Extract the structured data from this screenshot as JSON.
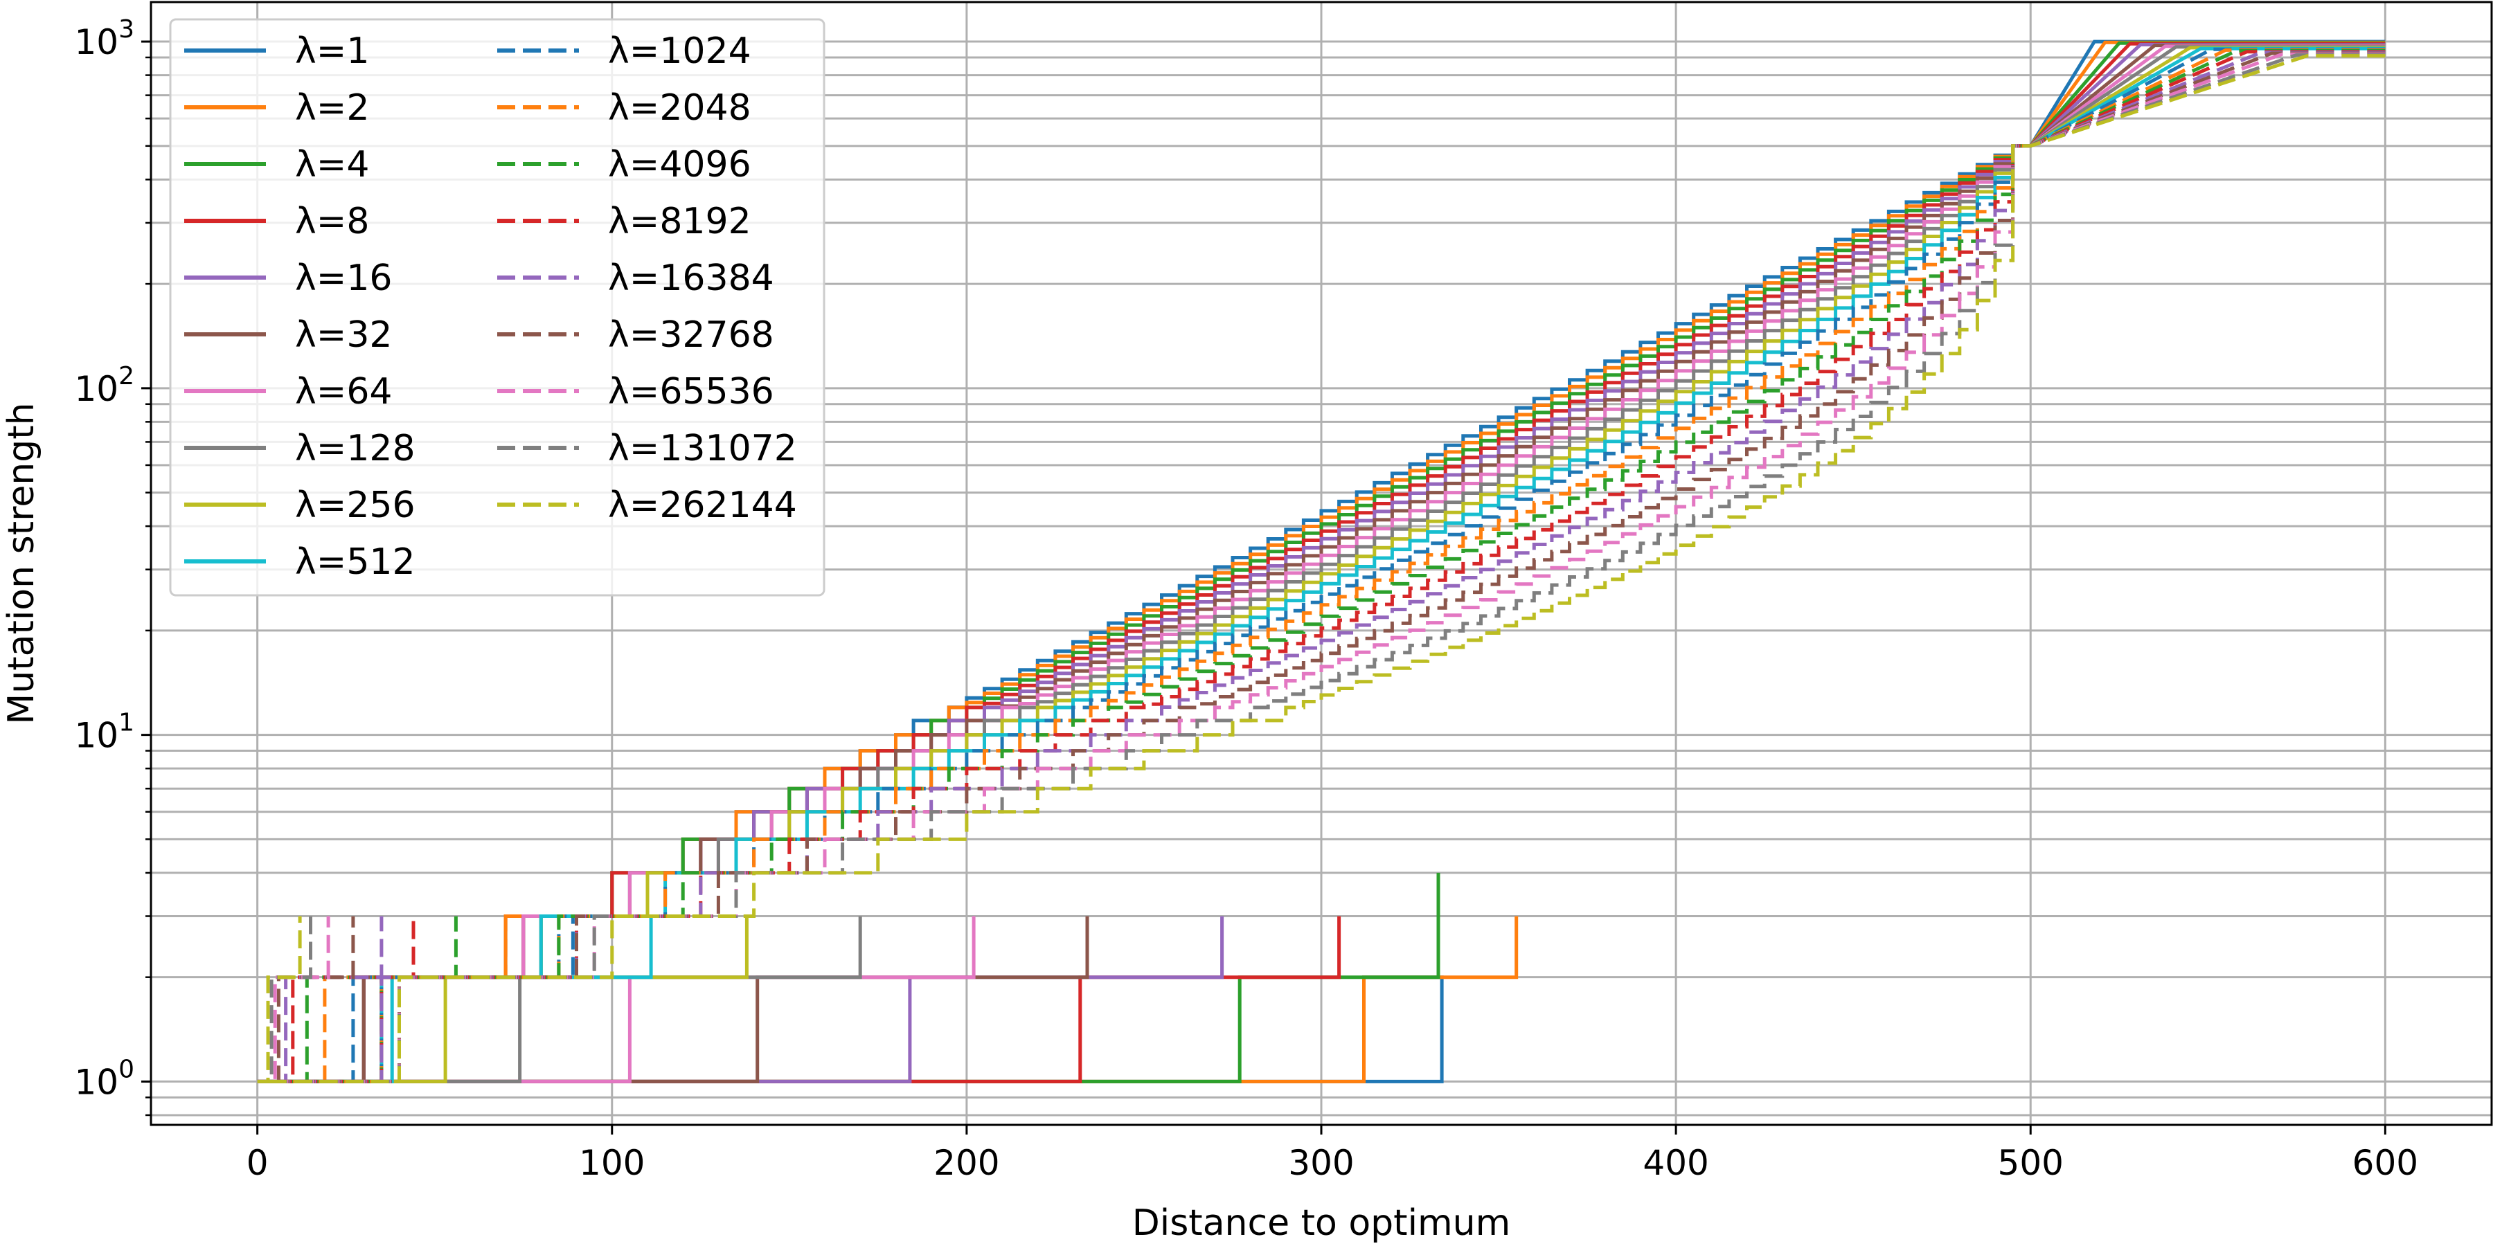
{
  "chart_data": {
    "type": "line",
    "title": "",
    "xlabel": "Distance to optimum",
    "ylabel": "Mutation strength",
    "xlim": [
      -30,
      630
    ],
    "ylim": [
      0.75,
      1300
    ],
    "yscale": "log",
    "grid": true,
    "legend_position": "top-left",
    "legend_columns": 2,
    "xticks": [
      0,
      100,
      200,
      300,
      400,
      500,
      600
    ],
    "xtick_labels": [
      "0",
      "100",
      "200",
      "300",
      "400",
      "500",
      "600"
    ],
    "yticks_major": [
      1,
      10,
      100,
      1000
    ],
    "ytick_labels": [
      {
        "base": "10",
        "exp": "0"
      },
      {
        "base": "10",
        "exp": "1"
      },
      {
        "base": "10",
        "exp": "2"
      },
      {
        "base": "10",
        "exp": "3"
      }
    ],
    "palette": [
      "#1f77b4",
      "#ff7f0e",
      "#2ca02c",
      "#d62728",
      "#9467bd",
      "#8c564b",
      "#e377c2",
      "#7f7f7f",
      "#bcbd22",
      "#17becf"
    ],
    "series": [
      {
        "name": "λ=1",
        "color": "#1f77b4",
        "dash": "solid",
        "k": 0,
        "points": [
          [
            0,
            1
          ],
          [
            334,
            1
          ],
          [
            334,
            2
          ],
          [
            312,
            2
          ],
          [
            312,
            1
          ]
        ]
      },
      {
        "name": "λ=2",
        "color": "#ff7f0e",
        "dash": "solid",
        "k": 1,
        "points": [
          [
            0,
            1
          ],
          [
            312,
            1
          ],
          [
            312,
            2
          ],
          [
            355,
            2
          ],
          [
            355,
            3
          ]
        ]
      },
      {
        "name": "λ=4",
        "color": "#2ca02c",
        "dash": "solid",
        "k": 2,
        "points": [
          [
            0,
            1
          ],
          [
            277,
            1
          ],
          [
            277,
            2
          ],
          [
            333,
            2
          ],
          [
            333,
            4
          ]
        ]
      },
      {
        "name": "λ=8",
        "color": "#d62728",
        "dash": "solid",
        "k": 3,
        "points": [
          [
            0,
            1
          ],
          [
            232,
            1
          ],
          [
            232,
            2
          ],
          [
            305,
            2
          ],
          [
            305,
            3
          ]
        ]
      },
      {
        "name": "λ=16",
        "color": "#9467bd",
        "dash": "solid",
        "k": 4,
        "points": [
          [
            0,
            1
          ],
          [
            184,
            1
          ],
          [
            184,
            2
          ],
          [
            272,
            2
          ],
          [
            272,
            3
          ]
        ]
      },
      {
        "name": "λ=32",
        "color": "#8c564b",
        "dash": "solid",
        "k": 5,
        "points": [
          [
            0,
            1
          ],
          [
            141,
            1
          ],
          [
            141,
            2
          ],
          [
            234,
            2
          ],
          [
            234,
            3
          ]
        ]
      },
      {
        "name": "λ=64",
        "color": "#e377c2",
        "dash": "solid",
        "k": 6,
        "points": [
          [
            0,
            1
          ],
          [
            105,
            1
          ],
          [
            105,
            2
          ],
          [
            202,
            2
          ],
          [
            202,
            3
          ]
        ]
      },
      {
        "name": "λ=128",
        "color": "#7f7f7f",
        "dash": "solid",
        "k": 7,
        "points": [
          [
            0,
            1
          ],
          [
            74,
            1
          ],
          [
            74,
            2
          ],
          [
            170,
            2
          ],
          [
            170,
            3
          ]
        ]
      },
      {
        "name": "λ=256",
        "color": "#bcbd22",
        "dash": "solid",
        "k": 8,
        "points": [
          [
            0,
            1
          ],
          [
            53,
            1
          ],
          [
            53,
            2
          ],
          [
            138,
            2
          ],
          [
            138,
            3
          ]
        ]
      },
      {
        "name": "λ=512",
        "color": "#17becf",
        "dash": "solid",
        "k": 9,
        "points": [
          [
            0,
            1
          ],
          [
            38,
            1
          ],
          [
            38,
            2
          ],
          [
            111,
            2
          ],
          [
            111,
            3
          ]
        ]
      },
      {
        "name": "λ=1024",
        "color": "#1f77b4",
        "dash": "dashed",
        "k": 10,
        "points": [
          [
            0,
            1
          ],
          [
            27,
            1
          ],
          [
            27,
            2
          ],
          [
            89,
            2
          ],
          [
            89,
            3
          ]
        ]
      },
      {
        "name": "λ=2048",
        "color": "#ff7f0e",
        "dash": "dashed",
        "k": 11,
        "points": [
          [
            0,
            1
          ],
          [
            19,
            1
          ],
          [
            19,
            2
          ],
          [
            70,
            2
          ],
          [
            70,
            3
          ]
        ]
      },
      {
        "name": "λ=4096",
        "color": "#2ca02c",
        "dash": "dashed",
        "k": 12,
        "points": [
          [
            0,
            1
          ],
          [
            14,
            1
          ],
          [
            14,
            2
          ],
          [
            56,
            2
          ],
          [
            56,
            3
          ]
        ]
      },
      {
        "name": "λ=8192",
        "color": "#d62728",
        "dash": "dashed",
        "k": 13,
        "points": [
          [
            0,
            1
          ],
          [
            10,
            1
          ],
          [
            10,
            2
          ],
          [
            44,
            2
          ],
          [
            44,
            3
          ]
        ]
      },
      {
        "name": "λ=16384",
        "color": "#9467bd",
        "dash": "dashed",
        "k": 14,
        "points": [
          [
            0,
            1
          ],
          [
            8,
            1
          ],
          [
            8,
            2
          ],
          [
            35,
            2
          ],
          [
            35,
            3
          ]
        ]
      },
      {
        "name": "λ=32768",
        "color": "#8c564b",
        "dash": "dashed",
        "k": 15,
        "points": [
          [
            0,
            1
          ],
          [
            6,
            1
          ],
          [
            6,
            2
          ],
          [
            27,
            2
          ],
          [
            27,
            3
          ]
        ]
      },
      {
        "name": "λ=65536",
        "color": "#e377c2",
        "dash": "dashed",
        "k": 16,
        "points": [
          [
            0,
            1
          ],
          [
            5,
            1
          ],
          [
            5,
            2
          ],
          [
            20,
            2
          ],
          [
            20,
            3
          ]
        ]
      },
      {
        "name": "λ=131072",
        "color": "#7f7f7f",
        "dash": "dashed",
        "k": 17,
        "points": [
          [
            0,
            1
          ],
          [
            4,
            1
          ],
          [
            4,
            2
          ],
          [
            15,
            2
          ],
          [
            15,
            3
          ]
        ]
      },
      {
        "name": "λ=262144",
        "color": "#bcbd22",
        "dash": "dashed",
        "k": 18,
        "points": [
          [
            0,
            1
          ],
          [
            3,
            1
          ],
          [
            3,
            2
          ],
          [
            12,
            2
          ],
          [
            12,
            3
          ]
        ]
      }
    ]
  }
}
